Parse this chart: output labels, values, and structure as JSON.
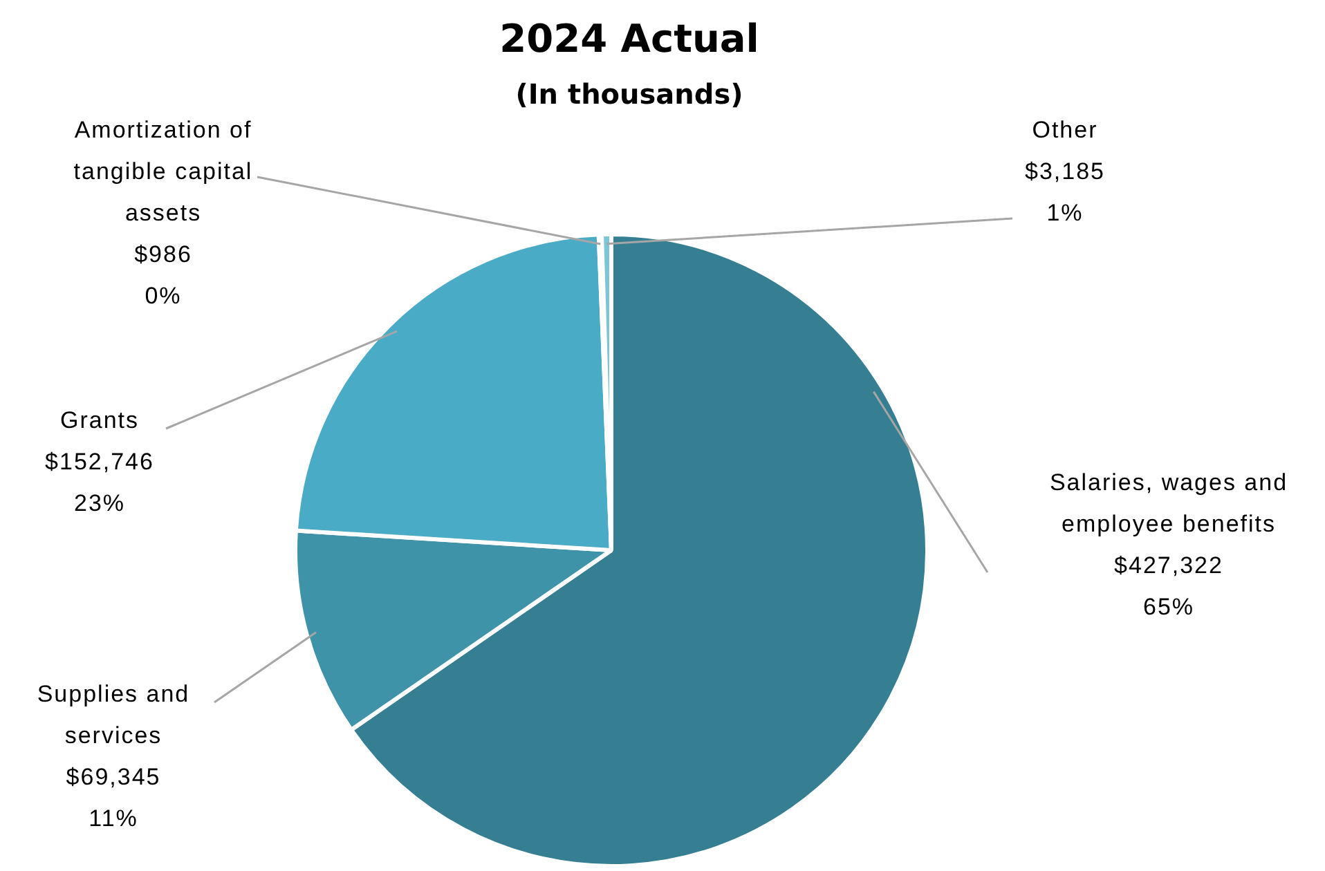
{
  "chart_data": {
    "type": "pie",
    "title": "2024 Actual",
    "subtitle": "(In thousands)",
    "categories": [
      "Salaries, wages and employee benefits",
      "Supplies and services",
      "Grants",
      "Amortization of tangible capital assets",
      "Other"
    ],
    "values": [
      427322,
      69345,
      152746,
      986,
      3185
    ],
    "colors": [
      "#367f93",
      "#3f93a9",
      "#4aabc6",
      "#a9d6e3",
      "#7cc4d8"
    ],
    "value_labels": [
      "$427,322\n65%",
      "$69,345\n11%",
      "$152,746\n23%",
      "$986\n0%",
      "$3,185\n1%"
    ]
  }
}
